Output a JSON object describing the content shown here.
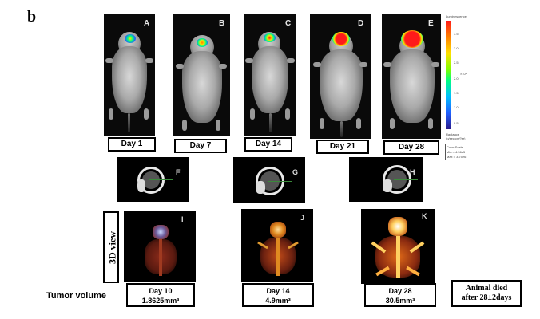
{
  "figure_label": "b",
  "mice": [
    {
      "letter": "A",
      "day": "Day 1"
    },
    {
      "letter": "B",
      "day": "Day 7"
    },
    {
      "letter": "C",
      "day": "Day 14"
    },
    {
      "letter": "D",
      "day": "Day 21"
    },
    {
      "letter": "E",
      "day": "Day 28"
    }
  ],
  "ct_panels": [
    {
      "letter": "F"
    },
    {
      "letter": "G"
    },
    {
      "letter": "H"
    }
  ],
  "render_panels": [
    {
      "letter": "I"
    },
    {
      "letter": "J"
    },
    {
      "letter": "K"
    }
  ],
  "view_label": "3D view",
  "tumor_volume_label": "Tumor volume",
  "volumes": [
    {
      "day": "Day 10",
      "value": "1.8625mm³"
    },
    {
      "day": "Day 14",
      "value": "4.9mm³"
    },
    {
      "day": "Day 28",
      "value": "30.5mm³"
    }
  ],
  "outcome": "Animal died after 28±2days",
  "colorbar": {
    "title": "Luminescence",
    "unit": "×10⁶",
    "ticks": [
      "3.5",
      "3.0",
      "2.5",
      "2.0",
      "1.5",
      "1.0",
      "0.5"
    ],
    "footer_line1": "Radiance",
    "footer_line2": "(p/sec/cm²/sr)",
    "scale_line1": "Color Scale",
    "scale_line2": "Min = 4.56e5",
    "scale_line3": "Max = 3.75e6"
  },
  "colors": {
    "panel_bg": "#0a0a0a",
    "signal_hot": "#ff1a1a",
    "signal_cool": "#2060ff"
  }
}
